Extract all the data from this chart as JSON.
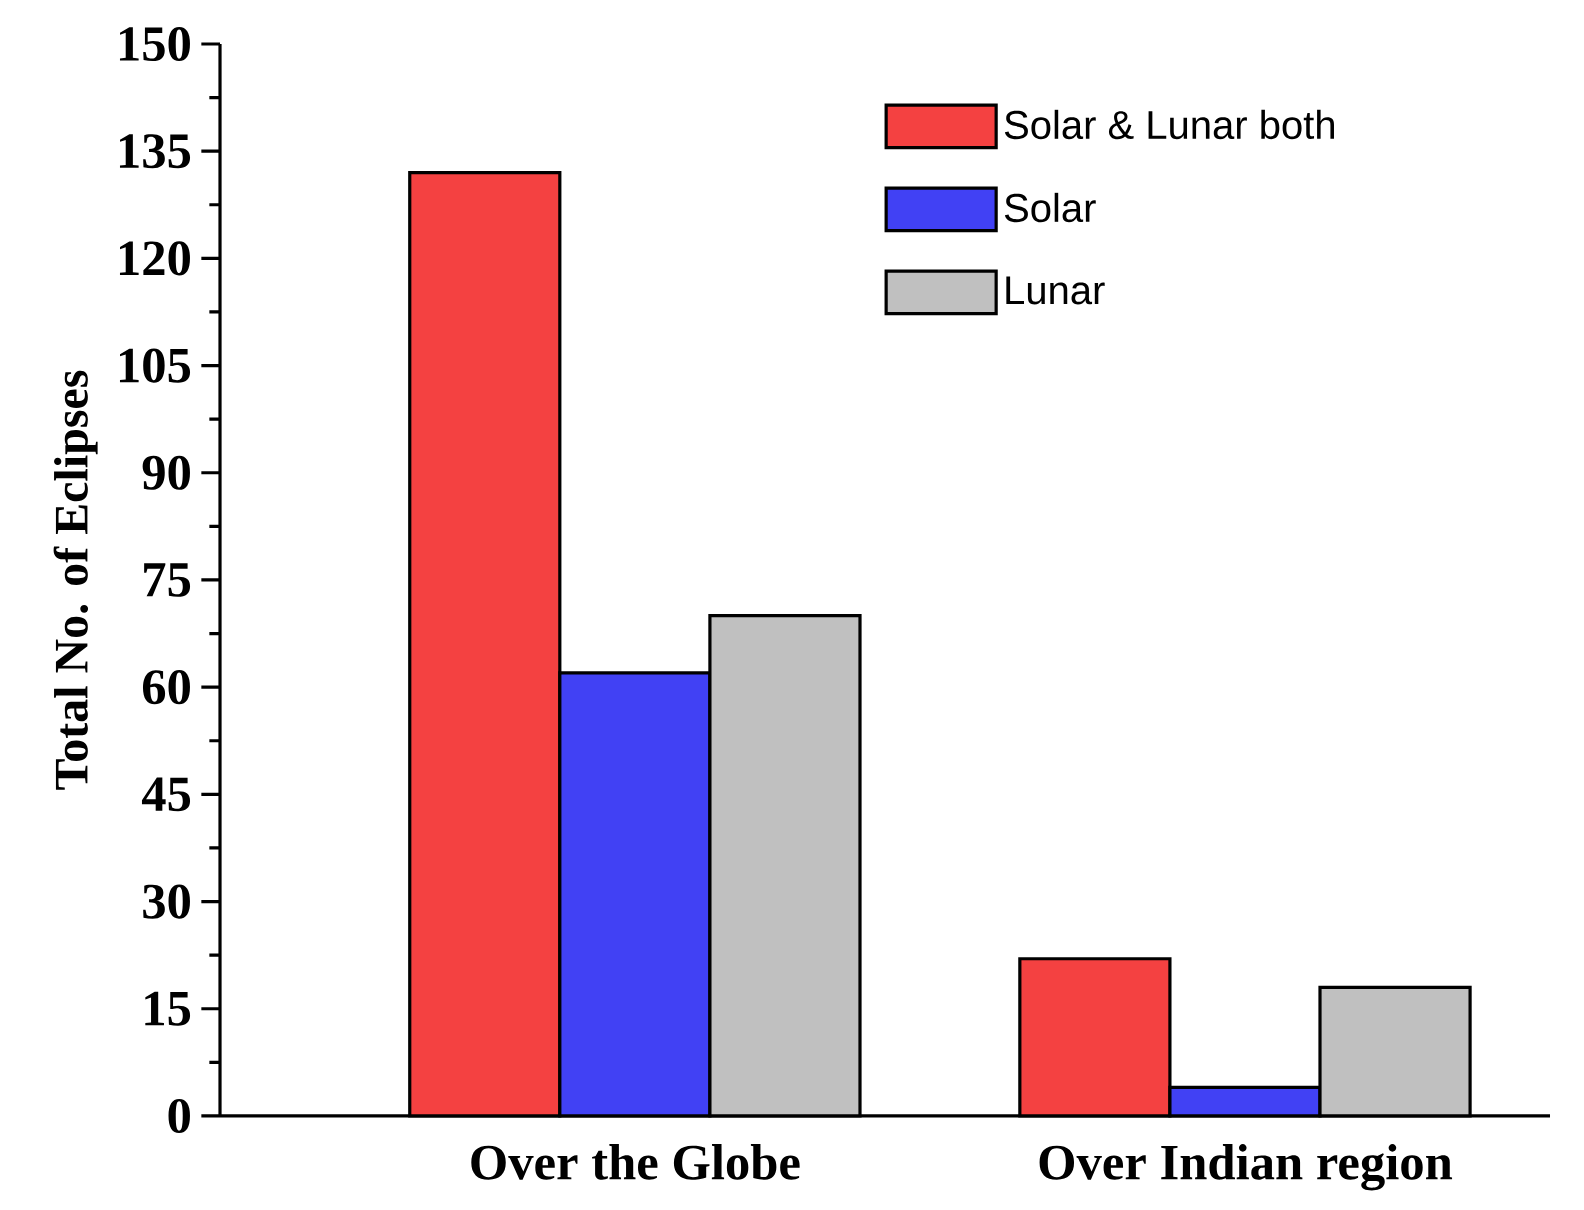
{
  "chart_data": {
    "type": "bar",
    "ylabel": "Total No. of Eclipses",
    "categories": [
      "Over the Globe",
      "Over Indian region"
    ],
    "series": [
      {
        "name": "Solar & Lunar both",
        "color": "#f44141",
        "values": [
          132,
          22
        ]
      },
      {
        "name": "Solar",
        "color": "#4141f4",
        "values": [
          62,
          4
        ]
      },
      {
        "name": "Lunar",
        "color": "#c0c0c0",
        "values": [
          70,
          18
        ]
      }
    ],
    "ylim": [
      0,
      150
    ],
    "yticks": [
      0,
      15,
      30,
      45,
      60,
      75,
      90,
      105,
      120,
      135,
      150
    ],
    "grid": false,
    "legend": "top right"
  }
}
